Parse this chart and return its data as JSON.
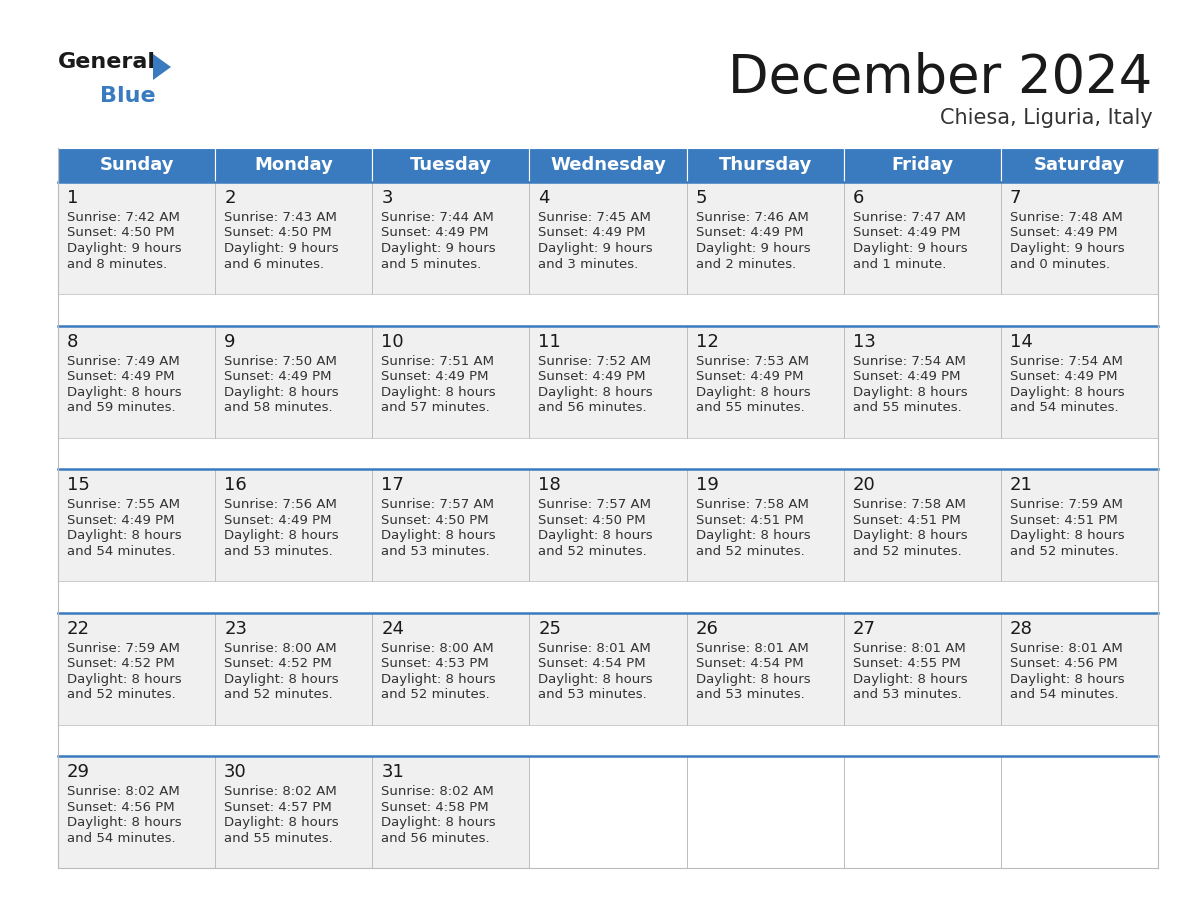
{
  "title": "December 2024",
  "subtitle": "Chiesa, Liguria, Italy",
  "header_color": "#3a7bbf",
  "header_text_color": "#ffffff",
  "cell_bg_color": "#f0f0f0",
  "empty_cell_color": "#ffffff",
  "day_names": [
    "Sunday",
    "Monday",
    "Tuesday",
    "Wednesday",
    "Thursday",
    "Friday",
    "Saturday"
  ],
  "days": [
    {
      "day": 1,
      "col": 0,
      "row": 0,
      "sunrise": "7:42 AM",
      "sunset": "4:50 PM",
      "daylight_hours": 9,
      "daylight_minutes": 8
    },
    {
      "day": 2,
      "col": 1,
      "row": 0,
      "sunrise": "7:43 AM",
      "sunset": "4:50 PM",
      "daylight_hours": 9,
      "daylight_minutes": 6
    },
    {
      "day": 3,
      "col": 2,
      "row": 0,
      "sunrise": "7:44 AM",
      "sunset": "4:49 PM",
      "daylight_hours": 9,
      "daylight_minutes": 5
    },
    {
      "day": 4,
      "col": 3,
      "row": 0,
      "sunrise": "7:45 AM",
      "sunset": "4:49 PM",
      "daylight_hours": 9,
      "daylight_minutes": 3
    },
    {
      "day": 5,
      "col": 4,
      "row": 0,
      "sunrise": "7:46 AM",
      "sunset": "4:49 PM",
      "daylight_hours": 9,
      "daylight_minutes": 2
    },
    {
      "day": 6,
      "col": 5,
      "row": 0,
      "sunrise": "7:47 AM",
      "sunset": "4:49 PM",
      "daylight_hours": 9,
      "daylight_minutes": 1
    },
    {
      "day": 7,
      "col": 6,
      "row": 0,
      "sunrise": "7:48 AM",
      "sunset": "4:49 PM",
      "daylight_hours": 9,
      "daylight_minutes": 0
    },
    {
      "day": 8,
      "col": 0,
      "row": 1,
      "sunrise": "7:49 AM",
      "sunset": "4:49 PM",
      "daylight_hours": 8,
      "daylight_minutes": 59
    },
    {
      "day": 9,
      "col": 1,
      "row": 1,
      "sunrise": "7:50 AM",
      "sunset": "4:49 PM",
      "daylight_hours": 8,
      "daylight_minutes": 58
    },
    {
      "day": 10,
      "col": 2,
      "row": 1,
      "sunrise": "7:51 AM",
      "sunset": "4:49 PM",
      "daylight_hours": 8,
      "daylight_minutes": 57
    },
    {
      "day": 11,
      "col": 3,
      "row": 1,
      "sunrise": "7:52 AM",
      "sunset": "4:49 PM",
      "daylight_hours": 8,
      "daylight_minutes": 56
    },
    {
      "day": 12,
      "col": 4,
      "row": 1,
      "sunrise": "7:53 AM",
      "sunset": "4:49 PM",
      "daylight_hours": 8,
      "daylight_minutes": 55
    },
    {
      "day": 13,
      "col": 5,
      "row": 1,
      "sunrise": "7:54 AM",
      "sunset": "4:49 PM",
      "daylight_hours": 8,
      "daylight_minutes": 55
    },
    {
      "day": 14,
      "col": 6,
      "row": 1,
      "sunrise": "7:54 AM",
      "sunset": "4:49 PM",
      "daylight_hours": 8,
      "daylight_minutes": 54
    },
    {
      "day": 15,
      "col": 0,
      "row": 2,
      "sunrise": "7:55 AM",
      "sunset": "4:49 PM",
      "daylight_hours": 8,
      "daylight_minutes": 54
    },
    {
      "day": 16,
      "col": 1,
      "row": 2,
      "sunrise": "7:56 AM",
      "sunset": "4:49 PM",
      "daylight_hours": 8,
      "daylight_minutes": 53
    },
    {
      "day": 17,
      "col": 2,
      "row": 2,
      "sunrise": "7:57 AM",
      "sunset": "4:50 PM",
      "daylight_hours": 8,
      "daylight_minutes": 53
    },
    {
      "day": 18,
      "col": 3,
      "row": 2,
      "sunrise": "7:57 AM",
      "sunset": "4:50 PM",
      "daylight_hours": 8,
      "daylight_minutes": 52
    },
    {
      "day": 19,
      "col": 4,
      "row": 2,
      "sunrise": "7:58 AM",
      "sunset": "4:51 PM",
      "daylight_hours": 8,
      "daylight_minutes": 52
    },
    {
      "day": 20,
      "col": 5,
      "row": 2,
      "sunrise": "7:58 AM",
      "sunset": "4:51 PM",
      "daylight_hours": 8,
      "daylight_minutes": 52
    },
    {
      "day": 21,
      "col": 6,
      "row": 2,
      "sunrise": "7:59 AM",
      "sunset": "4:51 PM",
      "daylight_hours": 8,
      "daylight_minutes": 52
    },
    {
      "day": 22,
      "col": 0,
      "row": 3,
      "sunrise": "7:59 AM",
      "sunset": "4:52 PM",
      "daylight_hours": 8,
      "daylight_minutes": 52
    },
    {
      "day": 23,
      "col": 1,
      "row": 3,
      "sunrise": "8:00 AM",
      "sunset": "4:52 PM",
      "daylight_hours": 8,
      "daylight_minutes": 52
    },
    {
      "day": 24,
      "col": 2,
      "row": 3,
      "sunrise": "8:00 AM",
      "sunset": "4:53 PM",
      "daylight_hours": 8,
      "daylight_minutes": 52
    },
    {
      "day": 25,
      "col": 3,
      "row": 3,
      "sunrise": "8:01 AM",
      "sunset": "4:54 PM",
      "daylight_hours": 8,
      "daylight_minutes": 53
    },
    {
      "day": 26,
      "col": 4,
      "row": 3,
      "sunrise": "8:01 AM",
      "sunset": "4:54 PM",
      "daylight_hours": 8,
      "daylight_minutes": 53
    },
    {
      "day": 27,
      "col": 5,
      "row": 3,
      "sunrise": "8:01 AM",
      "sunset": "4:55 PM",
      "daylight_hours": 8,
      "daylight_minutes": 53
    },
    {
      "day": 28,
      "col": 6,
      "row": 3,
      "sunrise": "8:01 AM",
      "sunset": "4:56 PM",
      "daylight_hours": 8,
      "daylight_minutes": 54
    },
    {
      "day": 29,
      "col": 0,
      "row": 4,
      "sunrise": "8:02 AM",
      "sunset": "4:56 PM",
      "daylight_hours": 8,
      "daylight_minutes": 54
    },
    {
      "day": 30,
      "col": 1,
      "row": 4,
      "sunrise": "8:02 AM",
      "sunset": "4:57 PM",
      "daylight_hours": 8,
      "daylight_minutes": 55
    },
    {
      "day": 31,
      "col": 2,
      "row": 4,
      "sunrise": "8:02 AM",
      "sunset": "4:58 PM",
      "daylight_hours": 8,
      "daylight_minutes": 56
    }
  ],
  "logo_color_general": "#1a1a1a",
  "logo_color_blue": "#3a7bbf",
  "logo_triangle_color": "#3a7bbf",
  "title_fontsize": 38,
  "subtitle_fontsize": 15,
  "header_fontsize": 13,
  "day_num_fontsize": 13,
  "cell_text_fontsize": 9.5,
  "num_rows": 5,
  "separator_color": "#3a7bbf",
  "grid_color": "#bbbbbb"
}
